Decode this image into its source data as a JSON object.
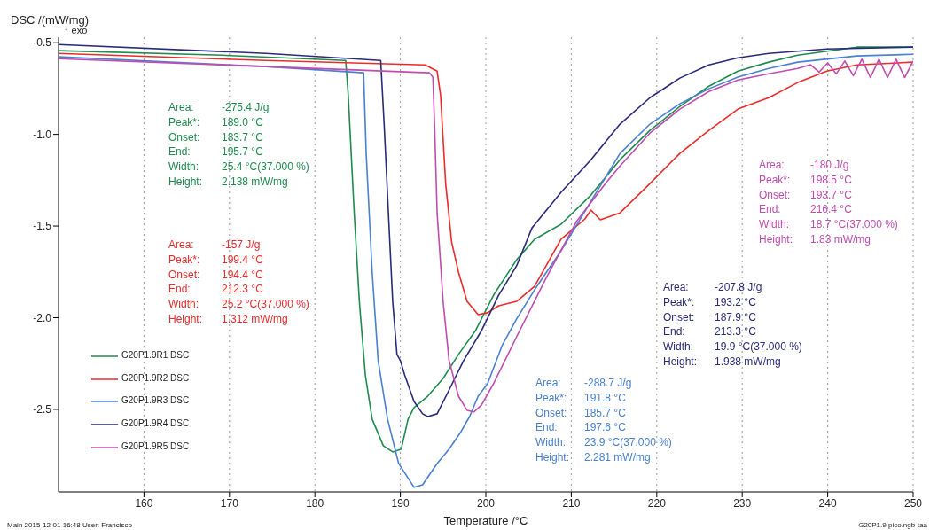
{
  "chart_data": {
    "type": "line",
    "xlabel": "Temperature /°C",
    "ylabel": "DSC /(mW/mg)",
    "xlim": [
      150,
      250
    ],
    "xticks": [
      160,
      170,
      180,
      190,
      200,
      210,
      220,
      230,
      240,
      250
    ],
    "ylim": [
      -2.95,
      -0.47
    ],
    "yticks": [
      {
        "value": -0.5,
        "label": "-0.5"
      },
      {
        "value": -1,
        "label": "-1.0"
      },
      {
        "value": -1.5,
        "label": "-1.5"
      },
      {
        "value": -2,
        "label": "-2.0"
      },
      {
        "value": -2.5,
        "label": "-2.5"
      }
    ],
    "grid": "x",
    "legend": "bottom left",
    "marker": "none",
    "line_style": "solid",
    "series": [
      {
        "name": "G20P1.9R1 DSC",
        "color": "#1e8c4e",
        "x": [
          150,
          169.1,
          183.6,
          183.9,
          184.6,
          185.2,
          185.9,
          186.7,
          188,
          189.1,
          190.1,
          190.9,
          191.6,
          193.2,
          195,
          196.8,
          198.8,
          200.9,
          203.6,
          205.7,
          208.8,
          212.3,
          215.7,
          219.2,
          222.7,
          226.1,
          229.5,
          233.1,
          236.5,
          243.4,
          250
        ],
        "values": [
          -0.543,
          -0.568,
          -0.597,
          -0.785,
          -1.428,
          -1.911,
          -2.312,
          -2.553,
          -2.698,
          -2.732,
          -2.717,
          -2.553,
          -2.49,
          -2.428,
          -2.331,
          -2.2,
          -2.07,
          -1.877,
          -1.684,
          -1.572,
          -1.49,
          -1.331,
          -1.138,
          -0.978,
          -0.848,
          -0.737,
          -0.655,
          -0.606,
          -0.568,
          -0.524,
          -0.524
        ]
      },
      {
        "name": "G20P1.9R2 DSC",
        "color": "#ee2a2a",
        "x": [
          150,
          174.3,
          192.9,
          194.3,
          194.7,
          195.3,
          196,
          196.8,
          197.8,
          199.1,
          200.2,
          201.5,
          203.6,
          205.7,
          208.8,
          211.6,
          212.3,
          213.4,
          215.7,
          219.2,
          222.7,
          226.1,
          229.5,
          233.1,
          236.5,
          239.9,
          243.4,
          250
        ],
        "values": [
          -0.558,
          -0.597,
          -0.621,
          -0.655,
          -0.785,
          -1.268,
          -1.587,
          -1.751,
          -1.911,
          -1.983,
          -1.973,
          -1.935,
          -1.911,
          -1.829,
          -1.572,
          -1.461,
          -1.413,
          -1.466,
          -1.428,
          -1.268,
          -1.104,
          -0.978,
          -0.862,
          -0.8,
          -0.717,
          -0.655,
          -0.621,
          -0.606
        ]
      },
      {
        "name": "G20P1.9R3 DSC",
        "color": "#4a80d0",
        "x": [
          150,
          174.3,
          185.7,
          186,
          186.7,
          187.4,
          188.5,
          189.8,
          191.6,
          192.6,
          194.3,
          195.7,
          197.1,
          198.1,
          199.1,
          200.2,
          201.9,
          203.6,
          205.7,
          208.8,
          212.3,
          215.7,
          219.2,
          222.7,
          226.1,
          229.5,
          233.1,
          236.5,
          243.4,
          250
        ],
        "values": [
          -0.577,
          -0.63,
          -0.664,
          -1.104,
          -1.751,
          -2.234,
          -2.553,
          -2.795,
          -2.925,
          -2.911,
          -2.795,
          -2.717,
          -2.621,
          -2.539,
          -2.428,
          -2.36,
          -2.152,
          -2.007,
          -1.848,
          -1.635,
          -1.365,
          -1.104,
          -0.944,
          -0.833,
          -0.751,
          -0.688,
          -0.64,
          -0.606,
          -0.572,
          -0.563
        ]
      },
      {
        "name": "G20P1.9R4 DSC",
        "color": "#2a2a7a",
        "x": [
          150,
          174.3,
          187.7,
          188.1,
          188.6,
          189.1,
          189.6,
          190,
          190.5,
          191.6,
          192.6,
          193.2,
          194.3,
          195.7,
          197.4,
          199.5,
          201.5,
          203.6,
          205.4,
          208.8,
          212.3,
          215.7,
          219.2,
          222.7,
          226.1,
          229.5,
          233.1,
          239.9,
          250
        ],
        "values": [
          -0.51,
          -0.558,
          -0.597,
          -0.944,
          -1.428,
          -1.911,
          -2.2,
          -2.234,
          -2.312,
          -2.457,
          -2.524,
          -2.539,
          -2.524,
          -2.394,
          -2.234,
          -2.07,
          -1.877,
          -1.717,
          -1.51,
          -1.316,
          -1.138,
          -0.944,
          -0.8,
          -0.693,
          -0.621,
          -0.582,
          -0.558,
          -0.534,
          -0.524
        ]
      },
      {
        "name": "G20P1.9R5 DSC",
        "color": "#c04cb0",
        "x": [
          150,
          174.3,
          193.4,
          193.8,
          194,
          194.3,
          195,
          195.7,
          196.8,
          197.8,
          198.6,
          199.5,
          200.9,
          203.6,
          207.1,
          210.6,
          214,
          215.7,
          219.2,
          222.7,
          226.1,
          229.5,
          233.1,
          236.5,
          238,
          239,
          240,
          241,
          242,
          243,
          244,
          245,
          246,
          247,
          248,
          249,
          250
        ],
        "values": [
          -0.587,
          -0.63,
          -0.664,
          -0.688,
          -0.944,
          -1.428,
          -1.911,
          -2.234,
          -2.428,
          -2.505,
          -2.514,
          -2.476,
          -2.36,
          -2.104,
          -1.78,
          -1.476,
          -1.268,
          -1.172,
          -0.993,
          -0.862,
          -0.766,
          -0.703,
          -0.669,
          -0.64,
          -0.62,
          -0.66,
          -0.61,
          -0.67,
          -0.6,
          -0.68,
          -0.59,
          -0.69,
          -0.59,
          -0.69,
          -0.59,
          -0.69,
          -0.6
        ]
      }
    ],
    "annotations": [
      "↑ exo",
      "Area:\t-275.4 J/g\nPeak*:\t189.0 °C\nOnset:\t183.7 °C\nEnd:\t195.7 °C\nWidth:\t25.4 °C(37.000 %)\nHeight:\t2.138 mW/mg",
      "Area:\t-157 J/g\nPeak*:\t199.4 °C\nOnset:\t194.4 °C\nEnd:\t212.3 °C\nWidth:\t25.2 °C(37.000 %)\nHeight:\t1.312 mW/mg",
      "Area:\t-207.8 J/g\nPeak*:\t193.2 °C\nOnset:\t187.9 °C\nEnd:\t213.3 °C\nWidth:\t19.9 °C(37.000 %)\nHeight:\t1.938 mW/mg",
      "Area:\t-288.7 J/g\nPeak*:\t191.8 °C\nOnset:\t185.7 °C\nEnd:\t197.6 °C\nWidth:\t23.9 °C(37.000 %)\nHeight:\t2.281 mW/mg",
      "Area:\t-180 J/g\nPeak*:\t198.5 °C\nOnset:\t193.7 °C\nEnd:\t216.4 °C\nWidth:\t18.7 °C(37.000 %)\nHeight:\t1.83 mW/mg",
      "Main   2015-12-01 16:48   User: Francisco",
      "G20P1.9 pico.ngb-taa"
    ]
  }
}
